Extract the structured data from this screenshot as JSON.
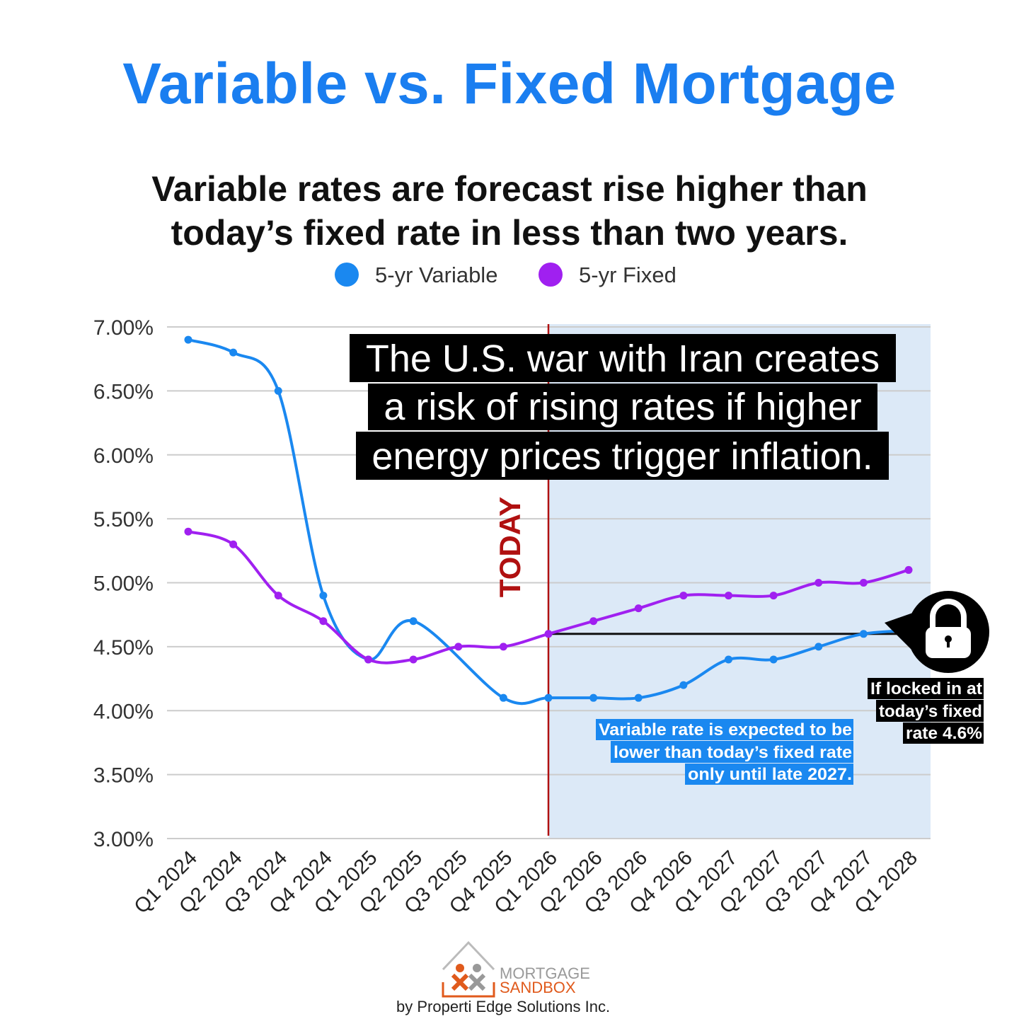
{
  "header": {
    "title": "Variable vs. Fixed Mortgage",
    "subtitle_line1": "Variable rates are forecast rise higher than",
    "subtitle_line2": "today’s fixed rate in less than two years."
  },
  "chart_data": {
    "type": "line",
    "categories": [
      "Q1 2024",
      "Q2 2024",
      "Q3 2024",
      "Q4 2024",
      "Q1 2025",
      "Q2 2025",
      "Q3 2025",
      "Q4 2025",
      "Q1 2026",
      "Q2 2026",
      "Q3 2026",
      "Q4 2026",
      "Q1 2027",
      "Q2 2027",
      "Q3 2027",
      "Q4 2027",
      "Q1 2028"
    ],
    "series": [
      {
        "name": "5-yr Variable",
        "color": "#1a88f0",
        "values": [
          6.9,
          6.8,
          6.5,
          4.9,
          4.4,
          4.7,
          null,
          4.1,
          4.1,
          4.1,
          4.1,
          4.2,
          4.4,
          4.4,
          4.5,
          4.6,
          null
        ]
      },
      {
        "name": "5-yr Fixed",
        "color": "#a020f0",
        "values": [
          5.4,
          5.3,
          4.9,
          4.7,
          4.4,
          4.4,
          4.5,
          4.5,
          4.6,
          4.7,
          4.8,
          4.9,
          4.9,
          4.9,
          5.0,
          5.0,
          5.1
        ]
      }
    ],
    "ylim": [
      3.0,
      7.0
    ],
    "yticks": [
      "3.00%",
      "3.50%",
      "4.00%",
      "4.50%",
      "5.00%",
      "5.50%",
      "6.00%",
      "6.50%",
      "7.00%"
    ],
    "grid": true,
    "legend_position": "top-center",
    "today_label": "TODAY",
    "today_category": "Q1 2026",
    "forecast_shading_color": "#dce9f7",
    "locked_rate": 4.6,
    "annotation_main": [
      "The U.S. war with Iran creates",
      "a risk of rising rates if higher",
      "energy prices trigger inflation."
    ],
    "annotation_variable": [
      "Variable rate is expected to be",
      "lower than today’s fixed rate",
      "only until late 2027."
    ],
    "annotation_locked": [
      "If locked in at",
      "today’s fixed",
      "rate 4.6%"
    ],
    "lock_icon": "padlock-icon"
  },
  "footer": {
    "logo_line1": "MORTGAGE",
    "logo_line2": "SANDBOX",
    "byline": "by Properti Edge Solutions Inc."
  }
}
